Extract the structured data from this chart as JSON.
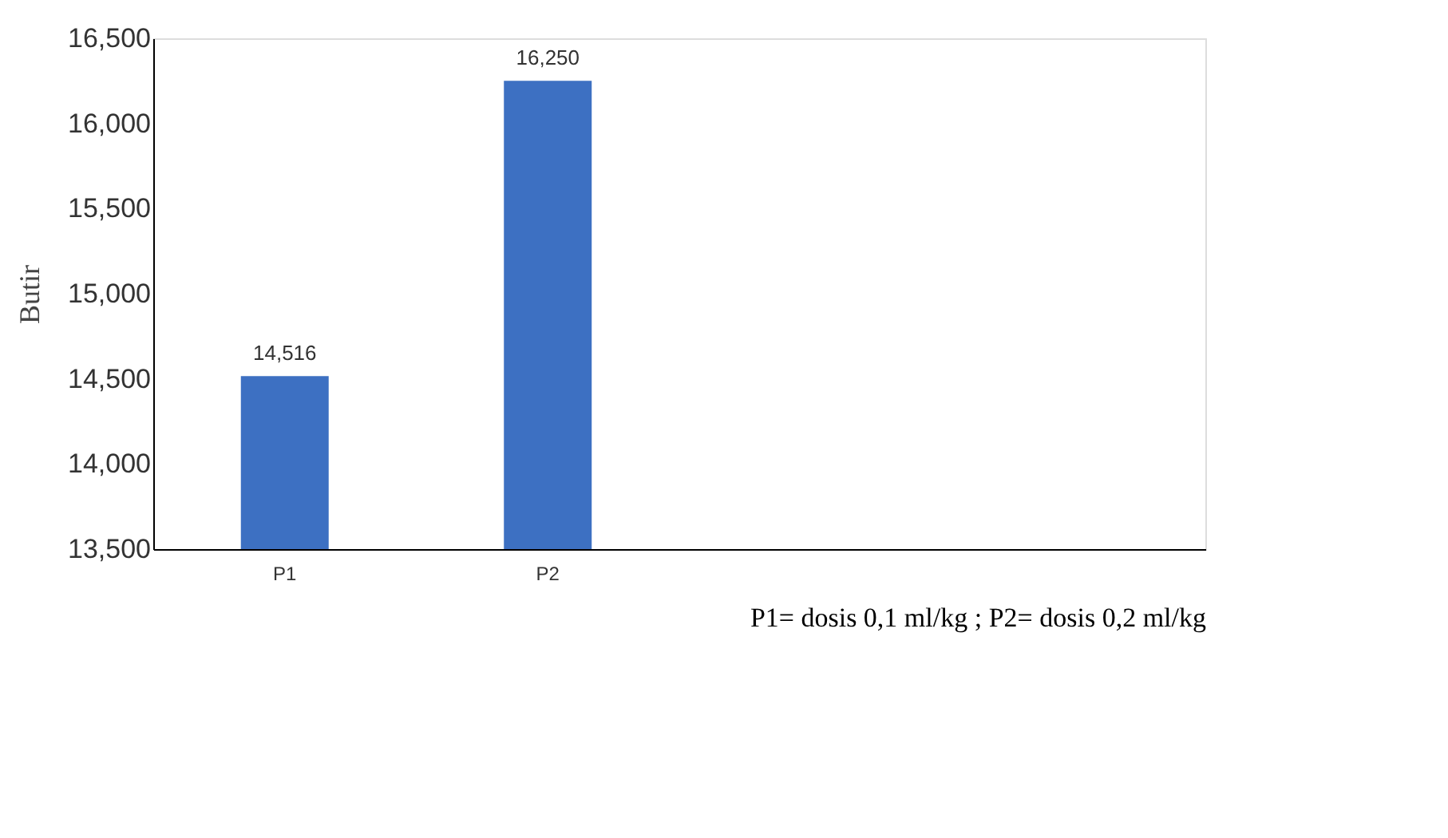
{
  "chart_data": {
    "type": "bar",
    "ylabel": "Butir",
    "xlabel": "P1= dosis 0,1 ml/kg ; P2= dosis 0,2 ml/kg",
    "categories": [
      "P1",
      "P2",
      null,
      null
    ],
    "values": [
      14516,
      16250,
      null,
      null
    ],
    "value_labels": [
      "14,516",
      "16,250",
      null,
      null
    ],
    "color": "#3d70c2",
    "ylim": [
      13500,
      16500
    ],
    "yticks": [
      {
        "value": 13500,
        "label": "13,500"
      },
      {
        "value": 14000,
        "label": "14,000"
      },
      {
        "value": 14500,
        "label": "14,500"
      },
      {
        "value": 15000,
        "label": "15,000"
      },
      {
        "value": 15500,
        "label": "15,500"
      },
      {
        "value": 16000,
        "label": "16,000"
      },
      {
        "value": 16500,
        "label": "16,500"
      }
    ],
    "grid": false
  }
}
